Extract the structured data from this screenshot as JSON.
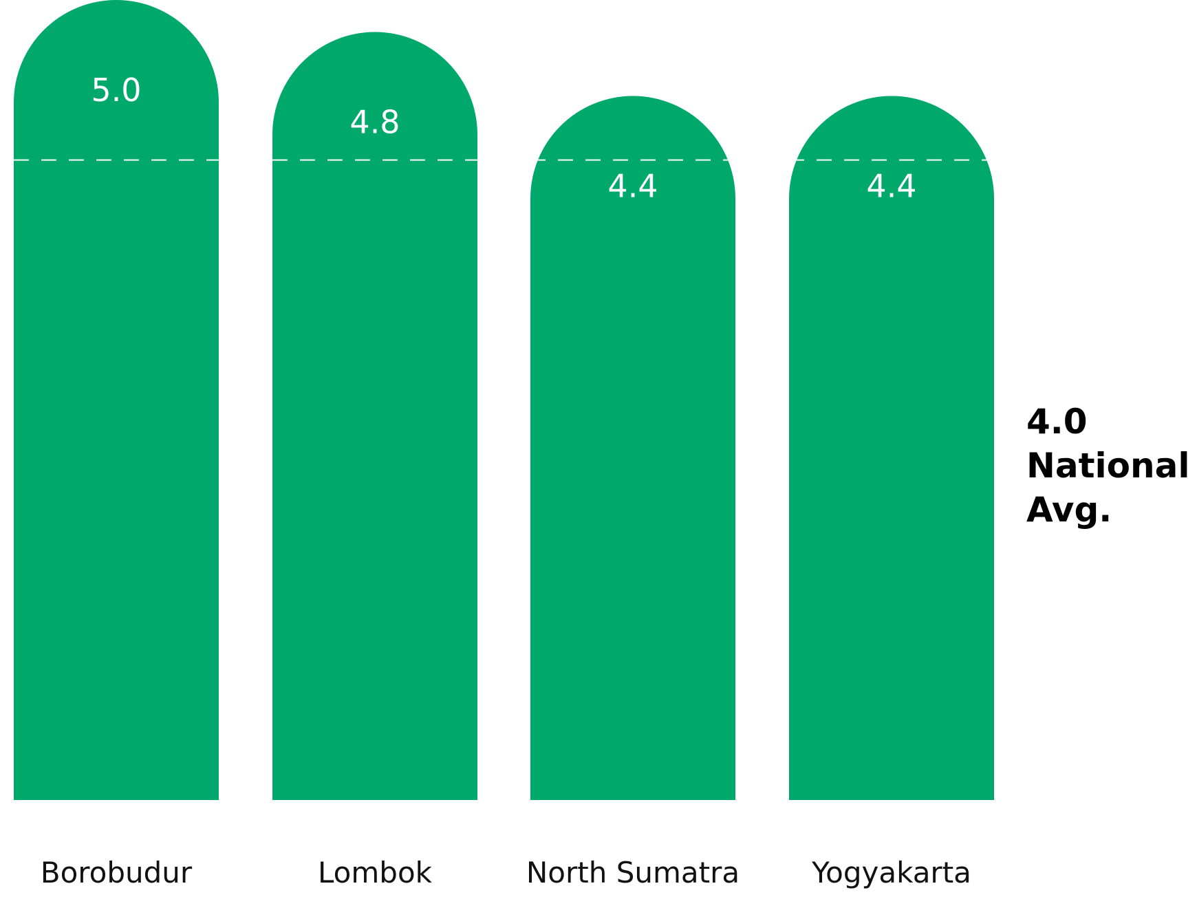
{
  "chart_data": {
    "type": "bar",
    "categories": [
      "Borobudur",
      "Lombok",
      "North Sumatra",
      "Yogyakarta"
    ],
    "values": [
      5.0,
      4.8,
      4.4,
      4.4
    ],
    "value_labels": [
      "5.0",
      "4.8",
      "4.4",
      "4.4"
    ],
    "ylim": [
      0,
      5.0
    ],
    "grid": false,
    "bar_color": "#00A86B",
    "reference_line": {
      "value": 4.0,
      "value_label": "4.0",
      "label_lines": [
        "National",
        "Avg."
      ],
      "style": "dashed",
      "color": "#ffffff"
    }
  }
}
